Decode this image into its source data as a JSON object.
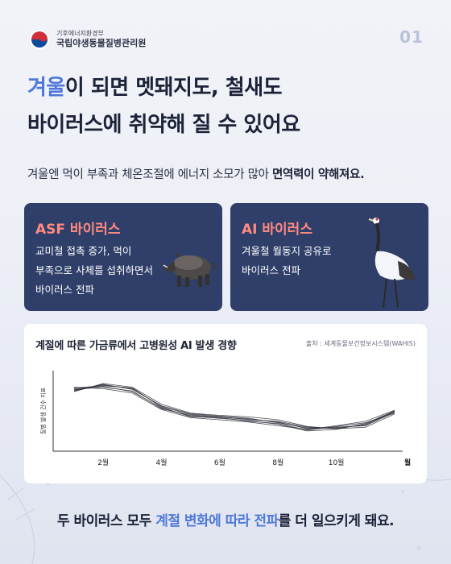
{
  "header": {
    "ministry": "기후에너지환경부",
    "agency": "국립야생동물질병관리원",
    "page_number": "01"
  },
  "headline": {
    "line1_accent": "겨울",
    "line1_rest": "이 되면 멧돼지도, 철새도",
    "line2": "바이러스에 취약해 질 수 있어요"
  },
  "subline": {
    "text": "겨울엔 먹이 부족과 체온조절에 에너지 소모가 많아 ",
    "bold": "면역력이 약해져요."
  },
  "cards": {
    "asf": {
      "title": "ASF 바이러스",
      "lines": [
        "교미철 접촉 증가, 먹이",
        "부족으로 사체를 섭취하면서",
        "바이러스 전파"
      ],
      "illustration": "wild-boar"
    },
    "ai": {
      "title": "AI 바이러스",
      "lines": [
        "겨울철 월동지 공유로",
        "바이러스 전파"
      ],
      "illustration": "crane"
    }
  },
  "chart_title": "계절에 따른 가금류에서 고병원성 AI 발생 경향",
  "chart_source": "출처 : 세계동물보건정보시스템(WAHIS)",
  "chart_data": {
    "type": "line",
    "title": "계절에 따른 가금류에서 고병원성 AI 발생 경향",
    "ylabel": "질병 발생 건수 지표",
    "xlabel": "월",
    "x": [
      1,
      2,
      3,
      4,
      5,
      6,
      7,
      8,
      9,
      10,
      11,
      12
    ],
    "x_tick_labels": [
      "2월",
      "4월",
      "6월",
      "8월",
      "10월"
    ],
    "x_tick_values": [
      2,
      4,
      6,
      8,
      10
    ],
    "ylim": [
      0,
      10
    ],
    "grid": false,
    "series": [
      {
        "values": [
          7.8,
          8.5,
          8.0,
          5.6,
          4.5,
          4.2,
          3.9,
          3.5,
          2.6,
          2.8,
          3.0,
          4.8
        ]
      },
      {
        "values": [
          8.0,
          8.3,
          7.6,
          5.4,
          4.3,
          4.0,
          3.7,
          3.2,
          2.3,
          2.5,
          3.3,
          5.0
        ]
      },
      {
        "values": [
          7.6,
          8.7,
          8.2,
          5.9,
          4.7,
          4.4,
          4.2,
          3.8,
          2.9,
          2.6,
          2.8,
          4.6
        ]
      },
      {
        "values": [
          8.2,
          8.0,
          7.4,
          5.2,
          4.1,
          3.8,
          3.5,
          3.0,
          2.5,
          3.0,
          3.6,
          5.1
        ]
      },
      {
        "values": [
          7.7,
          8.6,
          7.9,
          5.7,
          4.6,
          4.3,
          4.0,
          3.4,
          2.7,
          2.7,
          3.1,
          4.9
        ]
      },
      {
        "values": [
          7.9,
          8.2,
          7.7,
          5.3,
          4.4,
          4.1,
          3.6,
          3.3,
          2.4,
          2.9,
          3.4,
          4.7
        ]
      },
      {
        "values": [
          8.1,
          8.4,
          8.1,
          5.5,
          4.2,
          4.2,
          3.8,
          3.6,
          2.8,
          2.6,
          3.2,
          5.0
        ]
      }
    ]
  },
  "footer": {
    "pre": "두 바이러스 모두 ",
    "accent": "계절 변화에 따라 전파",
    "post": "를 더 일으키게 돼요."
  },
  "colors": {
    "accent_blue": "#4f78d8",
    "card_navy": "#2f3f69",
    "card_title_coral": "#ff8a80",
    "line_color": "#2a2d36"
  }
}
